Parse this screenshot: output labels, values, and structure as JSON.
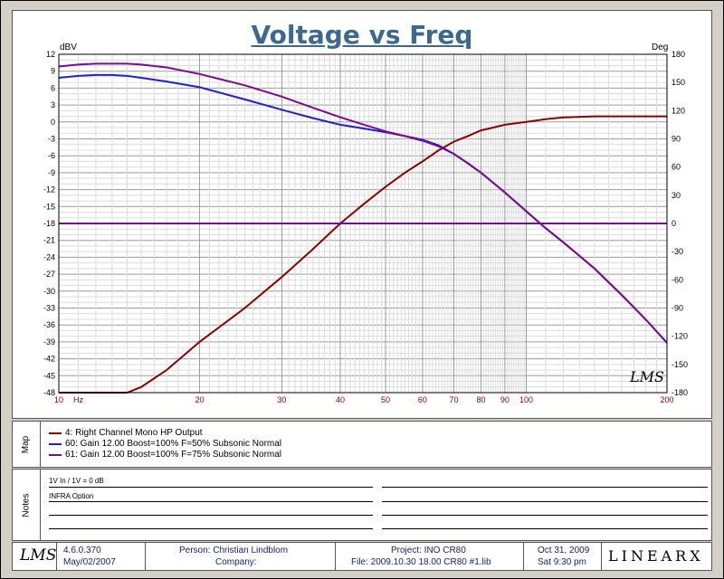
{
  "chart_data": {
    "type": "line",
    "title": "Voltage vs Freq",
    "xlabel": "Hz",
    "ylabel_left": "dBV",
    "ylabel_right": "Deg",
    "xscale": "log",
    "xlim": [
      10,
      200
    ],
    "ylim": [
      -48,
      12
    ],
    "y2lim": [
      -180,
      180
    ],
    "x_ticks": [
      10,
      20,
      30,
      40,
      50,
      60,
      70,
      80,
      90,
      100,
      200
    ],
    "x_tick_labels": [
      "10",
      "20",
      "30",
      "40",
      "50",
      "60",
      "70",
      "80",
      "90",
      "100",
      "200"
    ],
    "y_ticks": [
      12,
      9,
      6,
      3,
      0,
      -3,
      -6,
      -9,
      -12,
      -15,
      -18,
      -21,
      -24,
      -27,
      -30,
      -33,
      -36,
      -39,
      -42,
      -45,
      -48
    ],
    "y2_ticks": [
      180,
      150,
      120,
      90,
      60,
      30,
      0,
      -30,
      -60,
      -90,
      -120,
      -150,
      -180
    ],
    "grid": true,
    "series": [
      {
        "name": "4: Right Channel Mono HP Output",
        "color": "#8b0000",
        "axis": "left",
        "x": [
          10,
          14,
          15,
          17,
          20,
          25,
          30,
          35,
          40,
          45,
          50,
          55,
          60,
          65,
          70,
          75,
          80,
          85,
          90,
          100,
          110,
          120,
          140,
          160,
          200
        ],
        "y": [
          -48,
          -48,
          -47,
          -44,
          -39,
          -33,
          -27.5,
          -22.5,
          -18,
          -14.5,
          -11.5,
          -9,
          -7,
          -5,
          -3.5,
          -2.5,
          -1.5,
          -1,
          -0.5,
          0,
          0.5,
          0.8,
          1,
          1,
          1
        ]
      },
      {
        "name": "60: Gain 12.00 Boost=100% F=50% Subsonic Normal",
        "color": "#2020d0",
        "axis": "right",
        "x": [
          10,
          11,
          12,
          13,
          14,
          15,
          17,
          20,
          25,
          30,
          35,
          40,
          45,
          50,
          55,
          60,
          65,
          70,
          75,
          80,
          90,
          100,
          110,
          120,
          140,
          160,
          180,
          200
        ],
        "y": [
          155,
          157,
          158,
          158,
          157,
          155,
          151,
          145,
          132,
          121,
          112,
          105,
          101,
          97,
          93,
          89,
          83,
          74,
          64,
          54,
          33,
          13,
          -5,
          -20,
          -48,
          -76,
          -102,
          -127
        ]
      },
      {
        "name": "61: Gain 12.00 Boost=100% F=75% Subsonic Normal",
        "color": "#7a0a90",
        "axis": "right",
        "x": [
          10,
          11,
          12,
          13,
          14,
          15,
          17,
          20,
          25,
          30,
          35,
          40,
          45,
          50,
          55,
          60,
          65,
          70,
          75,
          80,
          90,
          100,
          110,
          120,
          140,
          160,
          180,
          200
        ],
        "y": [
          167,
          169,
          170,
          170,
          170,
          169,
          166,
          159,
          147,
          135,
          123,
          113,
          105,
          98,
          93,
          88,
          82,
          74,
          64,
          54,
          33,
          13,
          -5,
          -20,
          -48,
          -76,
          -102,
          -127
        ]
      },
      {
        "name": "",
        "color": "#7a0a90",
        "axis": "left",
        "x": [
          10,
          200
        ],
        "y": [
          -18,
          -18
        ]
      }
    ]
  },
  "map": {
    "label": "Map",
    "items": [
      {
        "text": "4: Right Channel Mono HP Output",
        "color": "#8b0000"
      },
      {
        "text": "60: Gain 12.00 Boost=100% F=50% Subsonic Normal",
        "color": "#2020d0"
      },
      {
        "text": "61: Gain 12.00 Boost=100% F=75% Subsonic Normal",
        "color": "#7a0a90"
      }
    ]
  },
  "notes": {
    "label": "Notes",
    "line1": "1V In / 1V = 0 dB",
    "line2": "INFRA Option"
  },
  "footer": {
    "logo": "LMS",
    "version": "4.6.0.370",
    "version_date": "May/02/2007",
    "person": "Person: Christian Lindblom",
    "company": "Company:",
    "project": "Project: INO CR80",
    "file": "File: 2009.10.30 18.00 CR80 #1.lib",
    "date": "Oct 31, 2009",
    "time": "Sat  9:30 pm",
    "brand": "LINEARX"
  },
  "watermark": "LMS"
}
